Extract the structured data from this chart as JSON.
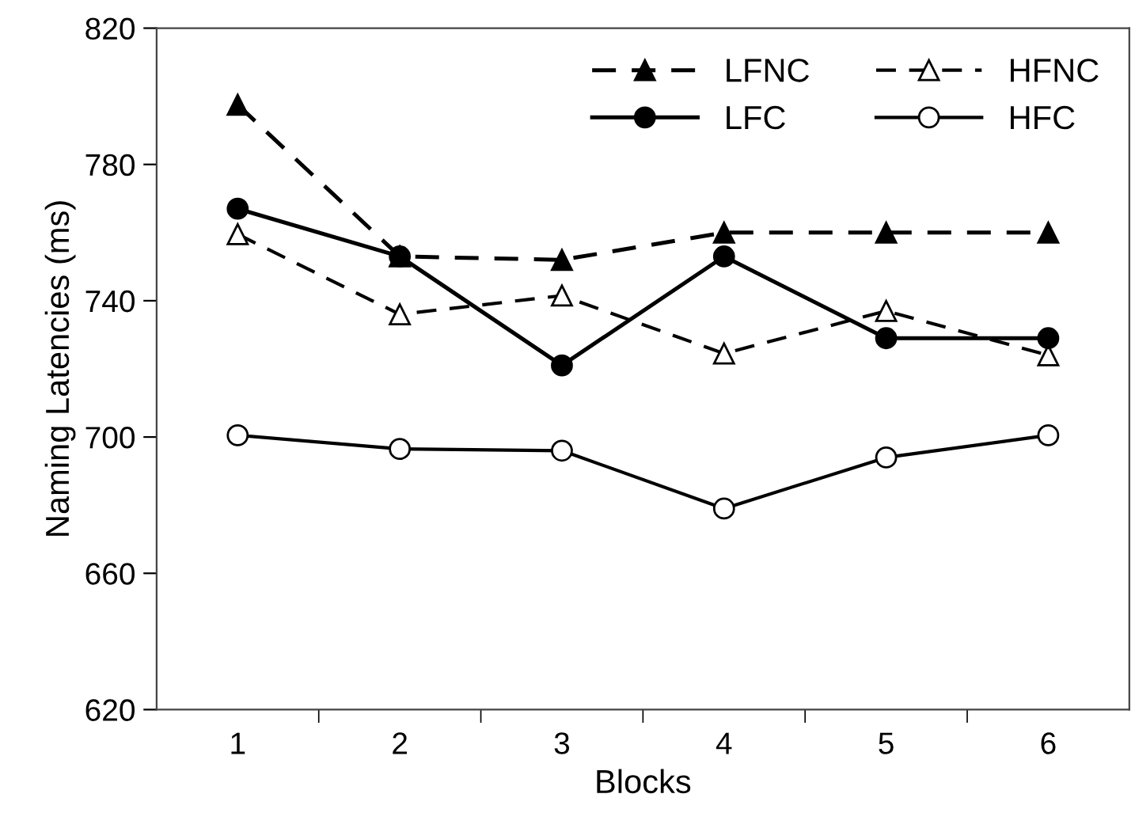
{
  "chart_data": {
    "type": "line",
    "xlabel": "Blocks",
    "ylabel": "Naming Latencies (ms)",
    "categories": [
      "1",
      "2",
      "3",
      "4",
      "5",
      "6"
    ],
    "ylim": [
      620,
      820
    ],
    "yticks": [
      620,
      660,
      700,
      740,
      780,
      820
    ],
    "grid": false,
    "legend": "top right",
    "series": [
      {
        "name": "LFNC",
        "color": "#000000",
        "marker": "triangle",
        "line_style": "dashed",
        "values": [
          797.5,
          753,
          752,
          760,
          760,
          760
        ]
      },
      {
        "name": "HFNC",
        "color": "#000000",
        "marker": "triangle",
        "line_style": "dashed",
        "values": [
          759.5,
          736,
          741.5,
          724.5,
          737,
          724
        ]
      },
      {
        "name": "LFC",
        "color": "#000000",
        "marker": "circle",
        "line_style": "solid",
        "values": [
          767,
          753,
          721,
          753,
          729,
          729
        ]
      },
      {
        "name": "HFC",
        "color": "#000000",
        "marker": "circle",
        "line_style": "solid",
        "values": [
          700.5,
          696.5,
          696,
          679,
          694,
          700.5
        ]
      }
    ]
  }
}
